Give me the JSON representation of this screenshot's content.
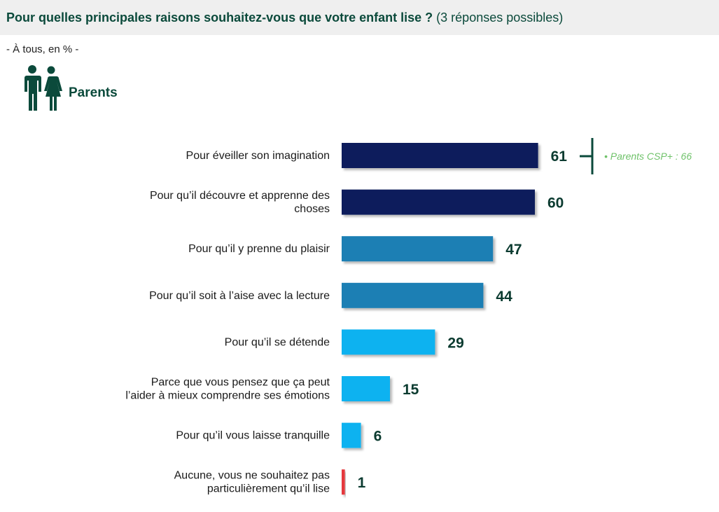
{
  "header": {
    "question": "Pour quelles principales raisons souhaitez-vous que votre enfant lise ?",
    "qualifier": "(3 réponses possibles)"
  },
  "subtitle": "- À tous, en % -",
  "group": {
    "label": "Parents",
    "icon": "parents-icon"
  },
  "annotation": {
    "text": "• Parents CSP+ : 66",
    "color": "#6fc26a"
  },
  "chart_data": {
    "type": "bar",
    "orientation": "horizontal",
    "xlim": [
      0,
      100
    ],
    "grid": false,
    "categories": [
      [
        "Pour éveiller son imagination"
      ],
      [
        "Pour qu’il découvre et apprenne des",
        "choses"
      ],
      [
        "Pour qu’il y prenne du plaisir"
      ],
      [
        "Pour qu’il soit à l’aise avec la lecture"
      ],
      [
        "Pour qu’il se détende"
      ],
      [
        "Parce que vous pensez que ça peut",
        "l’aider à mieux comprendre ses émotions"
      ],
      [
        "Pour qu’il vous laisse tranquille"
      ],
      [
        "Aucune, vous ne souhaitez pas",
        "particulièrement qu’il lise"
      ]
    ],
    "values": [
      61,
      60,
      47,
      44,
      29,
      15,
      6,
      1
    ],
    "colors": [
      "#0c1f5c",
      "#0c1f5c",
      "#1a7fb4",
      "#1a7fb4",
      "#0db2f0",
      "#0db2f0",
      "#0db2f0",
      "#e5373c"
    ]
  }
}
